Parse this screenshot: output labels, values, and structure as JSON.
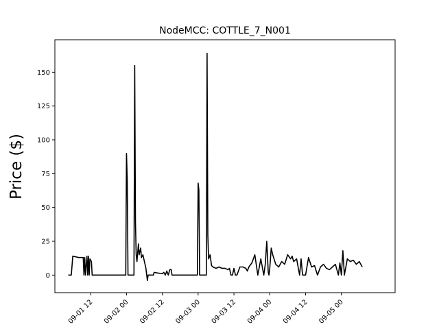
{
  "chart_data": {
    "type": "line",
    "title": "NodeMCC: COTTLE_7_N001",
    "ylabel": "Price ($)",
    "xlabel": "",
    "grid": false,
    "legend": "none",
    "line_color": "#000000",
    "xlim": [
      "2022-09-01 00:00",
      "2022-09-05 18:00"
    ],
    "ylim": [
      -13,
      174
    ],
    "x_ticks": [
      {
        "value": "2022-09-01 12:00",
        "label": "09-01 12"
      },
      {
        "value": "2022-09-02 00:00",
        "label": "09-02 00"
      },
      {
        "value": "2022-09-02 12:00",
        "label": "09-02 12"
      },
      {
        "value": "2022-09-03 00:00",
        "label": "09-03 00"
      },
      {
        "value": "2022-09-03 12:00",
        "label": "09-03 12"
      },
      {
        "value": "2022-09-04 00:00",
        "label": "09-04 00"
      },
      {
        "value": "2022-09-04 12:00",
        "label": "09-04 12"
      },
      {
        "value": "2022-09-05 00:00",
        "label": "09-05 00"
      }
    ],
    "y_ticks": [
      {
        "value": 0,
        "label": "0"
      },
      {
        "value": 25,
        "label": "25"
      },
      {
        "value": 50,
        "label": "50"
      },
      {
        "value": 75,
        "label": "75"
      },
      {
        "value": 100,
        "label": "100"
      },
      {
        "value": 125,
        "label": "125"
      },
      {
        "value": 150,
        "label": "150"
      }
    ],
    "series": [
      {
        "x": [
          "2022-09-01 04:30",
          "2022-09-01 05:30",
          "2022-09-01 06:00",
          "2022-09-01 08:00",
          "2022-09-01 09:30",
          "2022-09-01 09:45",
          "2022-09-01 10:00",
          "2022-09-01 10:15",
          "2022-09-01 10:45",
          "2022-09-01 11:00",
          "2022-09-01 11:15",
          "2022-09-01 11:30",
          "2022-09-01 11:45",
          "2022-09-01 12:15",
          "2022-09-01 12:30",
          "2022-09-01 13:00",
          "2022-09-01 13:15",
          "2022-09-01 23:45",
          "2022-09-02 00:00",
          "2022-09-02 00:15",
          "2022-09-02 00:30",
          "2022-09-02 02:30",
          "2022-09-02 02:45",
          "2022-09-02 03:00",
          "2022-09-02 03:15",
          "2022-09-02 03:30",
          "2022-09-02 04:00",
          "2022-09-02 04:15",
          "2022-09-02 04:45",
          "2022-09-02 05:00",
          "2022-09-02 05:30",
          "2022-09-02 06:00",
          "2022-09-02 06:30",
          "2022-09-02 07:00",
          "2022-09-02 07:15",
          "2022-09-02 07:30",
          "2022-09-02 07:45",
          "2022-09-02 09:00",
          "2022-09-02 09:15",
          "2022-09-02 12:00",
          "2022-09-02 12:30",
          "2022-09-02 13:00",
          "2022-09-02 13:30",
          "2022-09-02 14:00",
          "2022-09-02 14:30",
          "2022-09-02 15:00",
          "2022-09-02 15:15",
          "2022-09-02 23:45",
          "2022-09-03 00:00",
          "2022-09-03 00:15",
          "2022-09-03 00:30",
          "2022-09-03 02:45",
          "2022-09-03 03:00",
          "2022-09-03 03:15",
          "2022-09-03 03:30",
          "2022-09-03 04:00",
          "2022-09-03 04:30",
          "2022-09-03 05:00",
          "2022-09-03 06:00",
          "2022-09-03 07:00",
          "2022-09-03 08:00",
          "2022-09-03 09:00",
          "2022-09-03 10:00",
          "2022-09-03 10:30",
          "2022-09-03 11:00",
          "2022-09-03 11:30",
          "2022-09-03 12:00",
          "2022-09-03 12:30",
          "2022-09-03 13:00",
          "2022-09-03 14:00",
          "2022-09-03 15:00",
          "2022-09-03 16:00",
          "2022-09-03 16:30",
          "2022-09-03 17:00",
          "2022-09-03 18:00",
          "2022-09-03 19:00",
          "2022-09-03 20:00",
          "2022-09-03 21:00",
          "2022-09-03 22:00",
          "2022-09-03 22:30",
          "2022-09-03 23:00",
          "2022-09-03 23:30",
          "2022-09-03 23:45",
          "2022-09-04 00:00",
          "2022-09-04 00:30",
          "2022-09-04 01:00",
          "2022-09-04 02:00",
          "2022-09-04 03:00",
          "2022-09-04 04:00",
          "2022-09-04 05:00",
          "2022-09-04 06:00",
          "2022-09-04 07:00",
          "2022-09-04 07:30",
          "2022-09-04 08:00",
          "2022-09-04 09:00",
          "2022-09-04 10:00",
          "2022-09-04 10:30",
          "2022-09-04 11:00",
          "2022-09-04 12:00",
          "2022-09-04 13:00",
          "2022-09-04 14:00",
          "2022-09-04 15:00",
          "2022-09-04 16:00",
          "2022-09-04 17:00",
          "2022-09-04 18:00",
          "2022-09-04 19:00",
          "2022-09-04 20:00",
          "2022-09-04 21:00",
          "2022-09-04 22:00",
          "2022-09-04 23:00",
          "2022-09-04 23:30",
          "2022-09-05 00:00",
          "2022-09-05 00:30",
          "2022-09-05 01:00",
          "2022-09-05 02:00",
          "2022-09-05 03:00",
          "2022-09-05 04:00",
          "2022-09-05 05:00",
          "2022-09-05 06:00",
          "2022-09-05 07:00"
        ],
        "y": [
          0,
          0,
          14,
          13,
          13,
          0,
          13,
          0,
          14,
          0,
          14,
          0,
          12,
          10,
          0,
          0,
          0,
          0,
          90,
          70,
          0,
          0,
          155,
          40,
          15,
          10,
          23,
          15,
          20,
          13,
          15,
          10,
          5,
          -4,
          0,
          0,
          0,
          0,
          2,
          1,
          2,
          0,
          3,
          0,
          4,
          4,
          0,
          0,
          68,
          63,
          0,
          0,
          164,
          30,
          12,
          15,
          7,
          6,
          5,
          6,
          5,
          5,
          4,
          5,
          0,
          0,
          5,
          0,
          0,
          6,
          6,
          5,
          3,
          6,
          9,
          15,
          0,
          12,
          0,
          8,
          25,
          2,
          0,
          5,
          20,
          15,
          8,
          6,
          10,
          8,
          15,
          12,
          14,
          10,
          12,
          0,
          12,
          0,
          0,
          13,
          6,
          7,
          0,
          6,
          8,
          5,
          4,
          6,
          8,
          0,
          9,
          0,
          18,
          0,
          12,
          10,
          11,
          8,
          10,
          6
        ]
      }
    ]
  }
}
